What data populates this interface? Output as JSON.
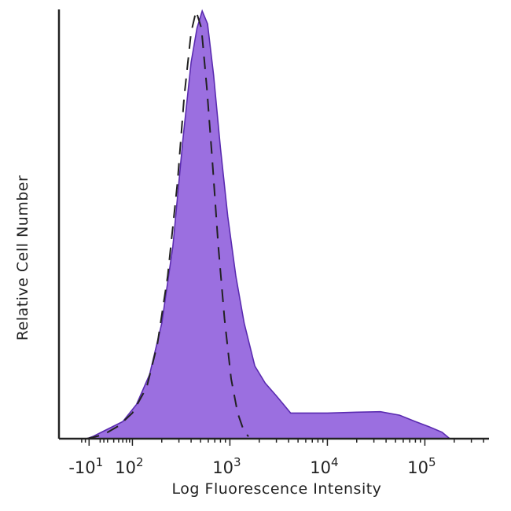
{
  "chart_data": {
    "type": "area",
    "xlabel": "Log Fluorescence Intensity",
    "ylabel": "Relative Cell Number",
    "x_scale": "log",
    "xlim": [
      -30,
      300000
    ],
    "ylim": [
      0,
      100
    ],
    "x_ticks": [
      {
        "value": -10,
        "base": "-10",
        "exp": "1"
      },
      {
        "value": 100,
        "base": "10",
        "exp": "2"
      },
      {
        "value": 1000,
        "base": "10",
        "exp": "3"
      },
      {
        "value": 10000,
        "base": "10",
        "exp": "4"
      },
      {
        "value": 100000,
        "base": "10",
        "exp": "5"
      }
    ],
    "series": [
      {
        "style": "filled",
        "color": "#9b6fe0",
        "edge_color": "#5a2bb0",
        "points": [
          [
            -16,
            0
          ],
          [
            0,
            0.5
          ],
          [
            35,
            2
          ],
          [
            70,
            4
          ],
          [
            110,
            8
          ],
          [
            150,
            15
          ],
          [
            200,
            27
          ],
          [
            260,
            45
          ],
          [
            330,
            70
          ],
          [
            400,
            88
          ],
          [
            460,
            96
          ],
          [
            520,
            100
          ],
          [
            590,
            97
          ],
          [
            680,
            85
          ],
          [
            800,
            68
          ],
          [
            950,
            52
          ],
          [
            1150,
            38
          ],
          [
            1400,
            27
          ],
          [
            1800,
            17
          ],
          [
            2300,
            13
          ],
          [
            3000,
            10
          ],
          [
            4200,
            6
          ],
          [
            6000,
            6
          ],
          [
            10000,
            6
          ],
          [
            20000,
            6.2
          ],
          [
            35000,
            6.3
          ],
          [
            55000,
            5.5
          ],
          [
            80000,
            4
          ],
          [
            110000,
            2.8
          ],
          [
            150000,
            1.5
          ],
          [
            180000,
            0
          ]
        ]
      },
      {
        "style": "dashed",
        "color": "#222222",
        "points": [
          [
            -16,
            0
          ],
          [
            0,
            0.3
          ],
          [
            30,
            1
          ],
          [
            60,
            3
          ],
          [
            100,
            6
          ],
          [
            140,
            12
          ],
          [
            180,
            22
          ],
          [
            230,
            38
          ],
          [
            290,
            60
          ],
          [
            340,
            80
          ],
          [
            400,
            95
          ],
          [
            450,
            100
          ],
          [
            510,
            96
          ],
          [
            580,
            82
          ],
          [
            660,
            65
          ],
          [
            760,
            45
          ],
          [
            880,
            28
          ],
          [
            1030,
            14
          ],
          [
            1200,
            6
          ],
          [
            1380,
            2
          ],
          [
            1550,
            0.5
          ]
        ]
      }
    ]
  }
}
